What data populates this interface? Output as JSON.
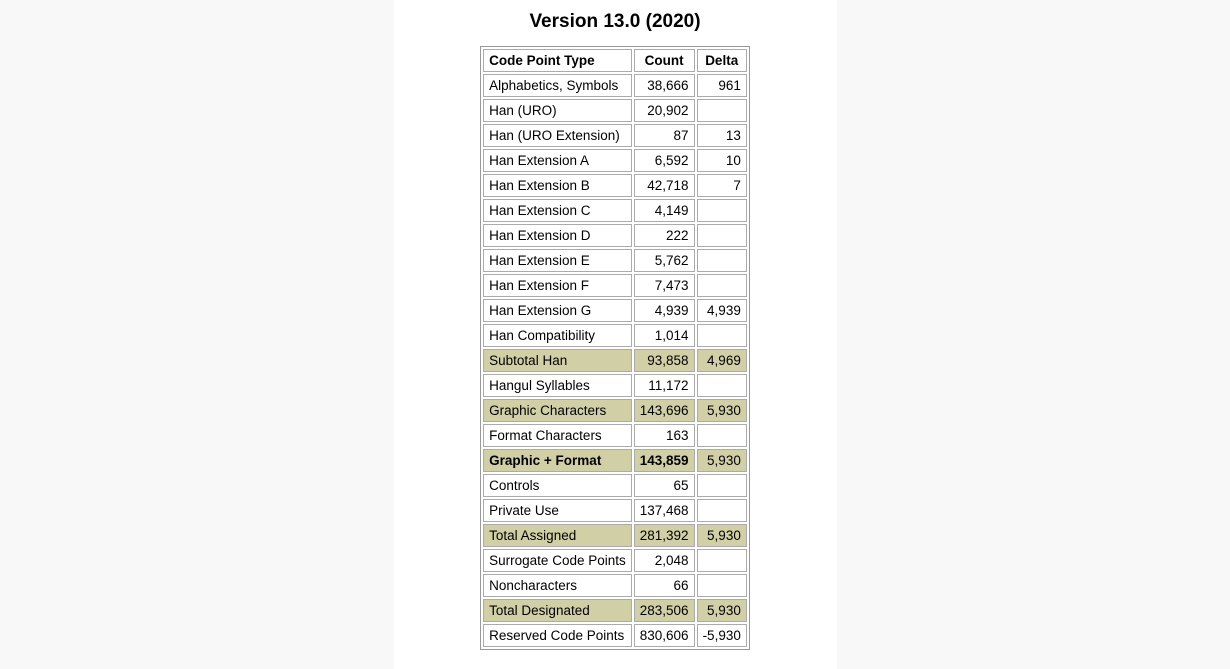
{
  "page": {
    "title": "Version 13.0 (2020)",
    "colors": {
      "page_background": "#f8f8f8",
      "panel_background": "#ffffff",
      "highlight_row": "#d1cfa6",
      "cell_border": "#ababab",
      "table_border": "#999999",
      "text": "#000000"
    }
  },
  "table": {
    "headers": [
      "Code Point Type",
      "Count",
      "Delta"
    ],
    "rows": [
      {
        "label": "Alphabetics, Symbols",
        "count": "38,666",
        "delta": "961",
        "highlight": false,
        "bold": false
      },
      {
        "label": "Han (URO)",
        "count": "20,902",
        "delta": "",
        "highlight": false,
        "bold": false
      },
      {
        "label": "Han (URO Extension)",
        "count": "87",
        "delta": "13",
        "highlight": false,
        "bold": false
      },
      {
        "label": "Han Extension A",
        "count": "6,592",
        "delta": "10",
        "highlight": false,
        "bold": false
      },
      {
        "label": "Han Extension B",
        "count": "42,718",
        "delta": "7",
        "highlight": false,
        "bold": false
      },
      {
        "label": "Han Extension C",
        "count": "4,149",
        "delta": "",
        "highlight": false,
        "bold": false
      },
      {
        "label": "Han Extension D",
        "count": "222",
        "delta": "",
        "highlight": false,
        "bold": false
      },
      {
        "label": "Han Extension E",
        "count": "5,762",
        "delta": "",
        "highlight": false,
        "bold": false
      },
      {
        "label": "Han Extension F",
        "count": "7,473",
        "delta": "",
        "highlight": false,
        "bold": false
      },
      {
        "label": "Han Extension G",
        "count": "4,939",
        "delta": "4,939",
        "highlight": false,
        "bold": false
      },
      {
        "label": "Han Compatibility",
        "count": "1,014",
        "delta": "",
        "highlight": false,
        "bold": false
      },
      {
        "label": "Subtotal Han",
        "count": "93,858",
        "delta": "4,969",
        "highlight": true,
        "bold": false
      },
      {
        "label": "Hangul Syllables",
        "count": "11,172",
        "delta": "",
        "highlight": false,
        "bold": false
      },
      {
        "label": "Graphic Characters",
        "count": "143,696",
        "delta": "5,930",
        "highlight": true,
        "bold": false
      },
      {
        "label": "Format Characters",
        "count": "163",
        "delta": "",
        "highlight": false,
        "bold": false
      },
      {
        "label": "Graphic + Format",
        "count": "143,859",
        "delta": "5,930",
        "highlight": true,
        "bold": true
      },
      {
        "label": "Controls",
        "count": "65",
        "delta": "",
        "highlight": false,
        "bold": false
      },
      {
        "label": "Private Use",
        "count": "137,468",
        "delta": "",
        "highlight": false,
        "bold": false
      },
      {
        "label": "Total Assigned",
        "count": "281,392",
        "delta": "5,930",
        "highlight": true,
        "bold": false
      },
      {
        "label": "Surrogate Code Points",
        "count": "2,048",
        "delta": "",
        "highlight": false,
        "bold": false
      },
      {
        "label": "Noncharacters",
        "count": "66",
        "delta": "",
        "highlight": false,
        "bold": false
      },
      {
        "label": "Total Designated",
        "count": "283,506",
        "delta": "5,930",
        "highlight": true,
        "bold": false
      },
      {
        "label": "Reserved Code Points",
        "count": "830,606",
        "delta": "-5,930",
        "highlight": false,
        "bold": false
      }
    ]
  },
  "chart_data": {
    "type": "table",
    "title": "Version 13.0 (2020)",
    "columns": [
      "Code Point Type",
      "Count",
      "Delta"
    ],
    "rows": [
      [
        "Alphabetics, Symbols",
        38666,
        961
      ],
      [
        "Han (URO)",
        20902,
        null
      ],
      [
        "Han (URO Extension)",
        87,
        13
      ],
      [
        "Han Extension A",
        6592,
        10
      ],
      [
        "Han Extension B",
        42718,
        7
      ],
      [
        "Han Extension C",
        4149,
        null
      ],
      [
        "Han Extension D",
        222,
        null
      ],
      [
        "Han Extension E",
        5762,
        null
      ],
      [
        "Han Extension F",
        7473,
        null
      ],
      [
        "Han Extension G",
        4939,
        4939
      ],
      [
        "Han Compatibility",
        1014,
        null
      ],
      [
        "Subtotal Han",
        93858,
        4969
      ],
      [
        "Hangul Syllables",
        11172,
        null
      ],
      [
        "Graphic Characters",
        143696,
        5930
      ],
      [
        "Format Characters",
        163,
        null
      ],
      [
        "Graphic + Format",
        143859,
        5930
      ],
      [
        "Controls",
        65,
        null
      ],
      [
        "Private Use",
        137468,
        null
      ],
      [
        "Total Assigned",
        281392,
        5930
      ],
      [
        "Surrogate Code Points",
        2048,
        null
      ],
      [
        "Noncharacters",
        66,
        null
      ],
      [
        "Total Designated",
        283506,
        5930
      ],
      [
        "Reserved Code Points",
        830606,
        -5930
      ]
    ]
  }
}
